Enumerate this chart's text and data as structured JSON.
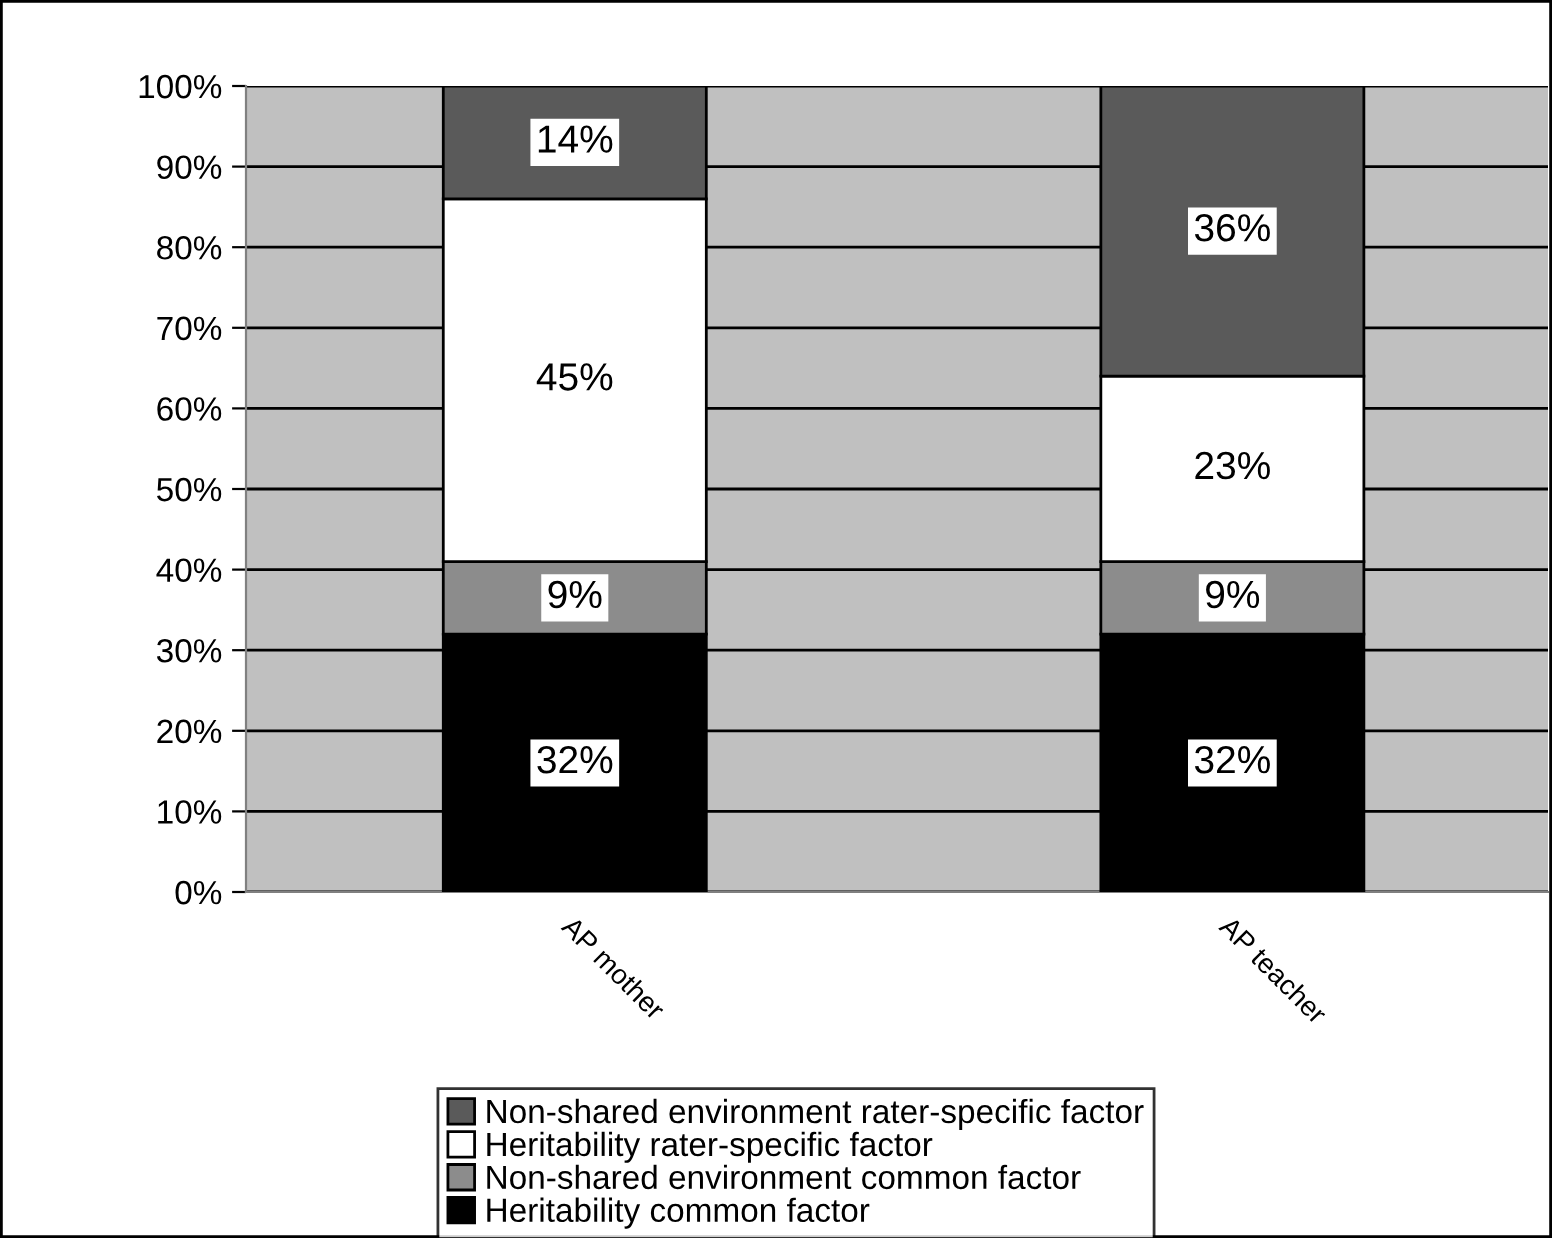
{
  "chart_data": {
    "type": "bar",
    "stacked": true,
    "categories": [
      "AP mother",
      "AP teacher"
    ],
    "series": [
      {
        "name": "Heritability common factor",
        "color": "#000000",
        "values": [
          32,
          32
        ],
        "value_labels": [
          "32%",
          "32%"
        ]
      },
      {
        "name": "Non-shared environment common factor",
        "color": "#8c8c8c",
        "values": [
          9,
          9
        ],
        "value_labels": [
          "9%",
          "9%"
        ]
      },
      {
        "name": "Heritability rater-specific factor",
        "color": "#ffffff",
        "values": [
          45,
          23
        ],
        "value_labels": [
          "45%",
          "23%"
        ]
      },
      {
        "name": "Non-shared environment rater-specific factor",
        "color": "#5a5a5a",
        "values": [
          14,
          36
        ],
        "value_labels": [
          "14%",
          "36%"
        ]
      }
    ],
    "ylim": [
      0,
      100
    ],
    "yticks": [
      {
        "value": 0,
        "label": "0%"
      },
      {
        "value": 10,
        "label": "10%"
      },
      {
        "value": 20,
        "label": "20%"
      },
      {
        "value": 30,
        "label": "30%"
      },
      {
        "value": 40,
        "label": "40%"
      },
      {
        "value": 50,
        "label": "50%"
      },
      {
        "value": 60,
        "label": "60%"
      },
      {
        "value": 70,
        "label": "70%"
      },
      {
        "value": 80,
        "label": "80%"
      },
      {
        "value": 90,
        "label": "90%"
      },
      {
        "value": 100,
        "label": "100%"
      }
    ],
    "grid": "y",
    "legend": "bottom"
  }
}
